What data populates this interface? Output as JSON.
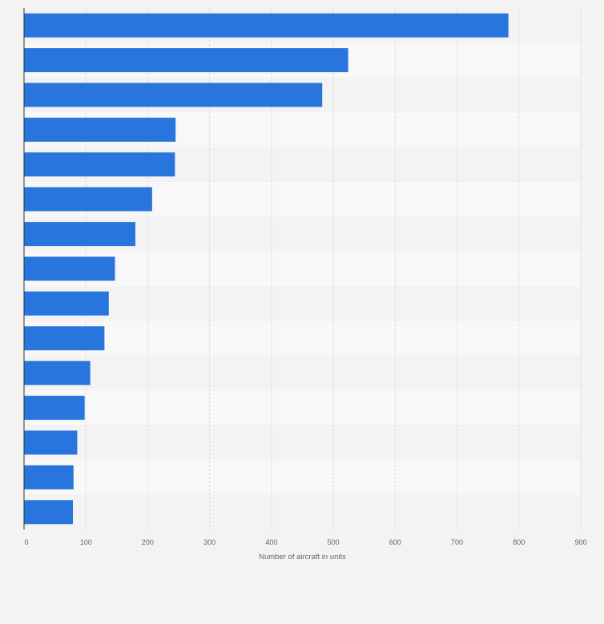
{
  "chart_data": {
    "type": "bar",
    "orientation": "horizontal",
    "title": "",
    "xlabel": "Number of aircraft in units",
    "ylabel": "",
    "xlim": [
      0,
      900
    ],
    "xticks": [
      0,
      100,
      200,
      300,
      400,
      500,
      600,
      700,
      800,
      900
    ],
    "xtick_labels": [
      "0",
      "100",
      "200",
      "300",
      "400",
      "500",
      "600",
      "700",
      "800",
      "900"
    ],
    "grid": true,
    "categories": [
      "",
      "",
      "",
      "",
      "",
      "",
      "",
      "",
      "",
      "",
      "",
      "",
      "",
      "",
      ""
    ],
    "values": [
      783,
      524,
      482,
      245,
      244,
      207,
      180,
      147,
      137,
      130,
      107,
      98,
      86,
      80,
      79
    ],
    "bar_color": "#2876dd",
    "row_colors": [
      "#f3f3f3",
      "#f8f8f8"
    ],
    "grid_color": "#d9d9d9",
    "axis_color": "#333333"
  }
}
